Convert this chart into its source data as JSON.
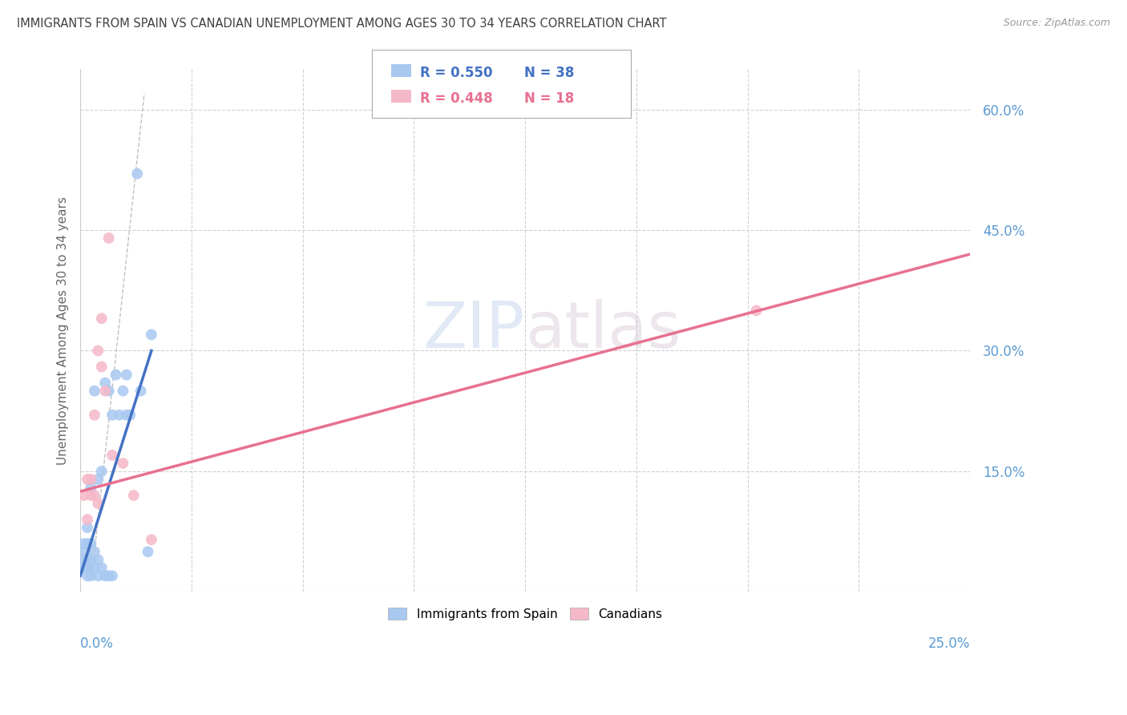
{
  "title": "IMMIGRANTS FROM SPAIN VS CANADIAN UNEMPLOYMENT AMONG AGES 30 TO 34 YEARS CORRELATION CHART",
  "source": "Source: ZipAtlas.com",
  "ylabel": "Unemployment Among Ages 30 to 34 years",
  "right_yticks": [
    "60.0%",
    "45.0%",
    "30.0%",
    "15.0%"
  ],
  "right_ytick_vals": [
    0.6,
    0.45,
    0.3,
    0.15
  ],
  "xlim": [
    0.0,
    0.25
  ],
  "ylim": [
    0.0,
    0.65
  ],
  "watermark_zip": "ZIP",
  "watermark_atlas": "atlas",
  "blue_scatter_x": [
    0.0005,
    0.001,
    0.001,
    0.0015,
    0.0015,
    0.002,
    0.002,
    0.002,
    0.002,
    0.0025,
    0.003,
    0.003,
    0.003,
    0.003,
    0.004,
    0.004,
    0.004,
    0.005,
    0.005,
    0.005,
    0.006,
    0.006,
    0.007,
    0.007,
    0.008,
    0.008,
    0.009,
    0.009,
    0.01,
    0.011,
    0.012,
    0.013,
    0.013,
    0.014,
    0.016,
    0.017,
    0.019,
    0.02
  ],
  "blue_scatter_y": [
    0.03,
    0.04,
    0.06,
    0.03,
    0.05,
    0.02,
    0.04,
    0.06,
    0.08,
    0.03,
    0.02,
    0.04,
    0.06,
    0.13,
    0.03,
    0.05,
    0.25,
    0.02,
    0.04,
    0.14,
    0.03,
    0.15,
    0.02,
    0.26,
    0.02,
    0.25,
    0.02,
    0.22,
    0.27,
    0.22,
    0.25,
    0.22,
    0.27,
    0.22,
    0.52,
    0.25,
    0.05,
    0.32
  ],
  "pink_scatter_x": [
    0.001,
    0.002,
    0.002,
    0.003,
    0.003,
    0.004,
    0.004,
    0.005,
    0.005,
    0.006,
    0.006,
    0.007,
    0.008,
    0.009,
    0.012,
    0.015,
    0.02,
    0.19
  ],
  "pink_scatter_y": [
    0.12,
    0.09,
    0.14,
    0.12,
    0.14,
    0.12,
    0.22,
    0.3,
    0.11,
    0.28,
    0.34,
    0.25,
    0.44,
    0.17,
    0.16,
    0.12,
    0.065,
    0.35
  ],
  "blue_line_x": [
    0.0,
    0.02
  ],
  "blue_line_y": [
    0.02,
    0.3
  ],
  "pink_line_x": [
    0.0,
    0.25
  ],
  "pink_line_y": [
    0.125,
    0.42
  ],
  "dash_line_x": [
    0.004,
    0.018
  ],
  "dash_line_y": [
    0.05,
    0.62
  ],
  "blue_color": "#a8c8f0",
  "pink_color": "#f5b8c8",
  "blue_line_color": "#4472c4",
  "pink_line_color": "#e87090",
  "background_color": "#ffffff",
  "grid_color": "#d0d0d0",
  "title_color": "#404040",
  "right_axis_color": "#5b9bd5",
  "bottom_axis_color": "#5b9bd5"
}
